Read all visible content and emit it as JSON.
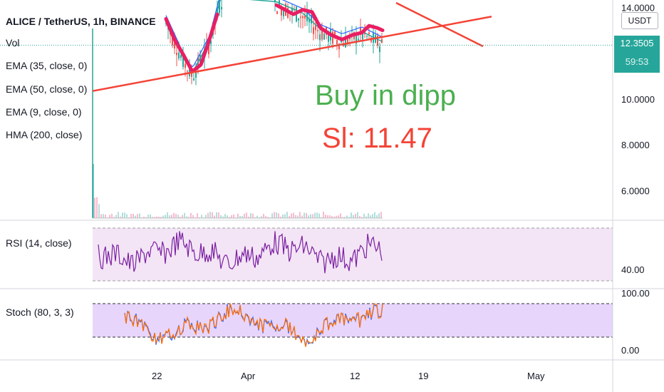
{
  "header": {
    "symbol_line": "ALICE / TetherUS, 1h, BINANCE",
    "indicators": [
      "Vol",
      "EMA (35, close, 0)",
      "EMA (50, close, 0)",
      "EMA (9, close, 0)",
      "HMA (200, close)"
    ]
  },
  "annotations": {
    "buy": "Buy in dipp",
    "sl": "Sl: 11.47",
    "buy_color": "#4caf50",
    "sl_color": "#f44336"
  },
  "price_axis": {
    "unit": "USDT",
    "ticks": [
      "14.0000",
      "10.0000",
      "8.0000",
      "6.0000"
    ],
    "tick_values": [
      14,
      10,
      8,
      6
    ],
    "current_price": "12.3505",
    "countdown": "59:53"
  },
  "rsi": {
    "label": "RSI (14, close)",
    "tick": "40.00",
    "color": "#7b1fa2"
  },
  "stoch": {
    "label": "Stoch (80, 3, 3)",
    "ticks": [
      "100.00",
      "0.00"
    ]
  },
  "time_axis": {
    "labels": [
      "22",
      "Apr",
      "12",
      "19",
      "May"
    ]
  },
  "chart_data": {
    "type": "line",
    "title": "ALICE / TetherUS, 1h, BINANCE",
    "x_labels": [
      "22",
      "Apr",
      "12",
      "19",
      "May"
    ],
    "y_range": [
      4.8,
      14.2
    ],
    "series": [
      {
        "name": "HMA (200, close)",
        "color": "#e91e63",
        "points": [
          [
            233,
            13.5
          ],
          [
            245,
            12.6
          ],
          [
            258,
            11.9
          ],
          [
            270,
            11.2
          ],
          [
            282,
            11.5
          ],
          [
            294,
            12.6
          ],
          [
            305,
            13.7
          ]
        ]
      },
      {
        "name": "HMA (200, close)",
        "color": "#e91e63",
        "points": [
          [
            388,
            14.1
          ],
          [
            400,
            13.9
          ],
          [
            412,
            13.7
          ],
          [
            425,
            13.9
          ],
          [
            438,
            13.8
          ],
          [
            450,
            13.1
          ],
          [
            465,
            12.8
          ],
          [
            480,
            12.6
          ],
          [
            495,
            12.8
          ],
          [
            508,
            12.9
          ],
          [
            518,
            13.2
          ],
          [
            530,
            13.1
          ],
          [
            537,
            13.0
          ]
        ]
      }
    ],
    "trendlines": [
      {
        "color": "#f44336",
        "from": [
          130,
          10.35
        ],
        "to": [
          690,
          13.6
        ]
      },
      {
        "color": "#f44336",
        "from": [
          556,
          14.2
        ],
        "to": [
          678,
          12.3
        ]
      }
    ],
    "current_price_value": 12.3505
  }
}
